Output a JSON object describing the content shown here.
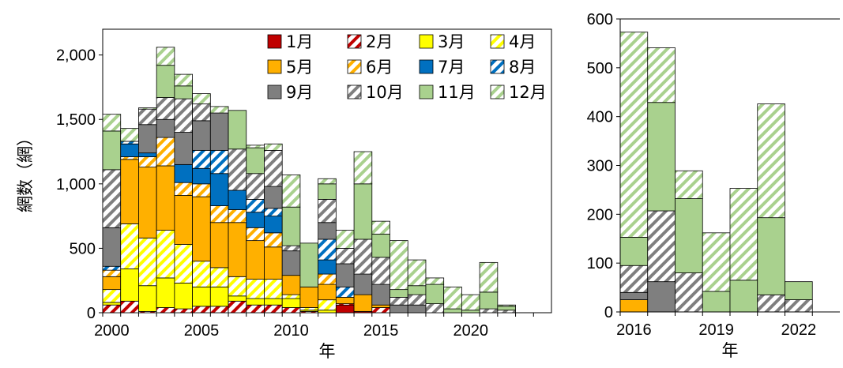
{
  "chart_data": [
    {
      "type": "bar",
      "stacked": true,
      "xlabel": "年",
      "ylabel": "網数（網）",
      "ylim": [
        0,
        2200
      ],
      "yticks": [
        0,
        500,
        1000,
        1500,
        2000
      ],
      "ytick_labels": [
        "0",
        "500",
        "1,000",
        "1,500",
        "2,000"
      ],
      "xticks": [
        2000,
        2005,
        2010,
        2015,
        2020
      ],
      "xlim": [
        1999.5,
        2024.5
      ],
      "legend_position": "top-right",
      "x": [
        2000,
        2001,
        2002,
        2003,
        2004,
        2005,
        2006,
        2007,
        2008,
        2009,
        2010,
        2011,
        2012,
        2013,
        2014,
        2015,
        2016,
        2017,
        2018,
        2019,
        2020,
        2021,
        2022
      ],
      "series": [
        {
          "name": "1月",
          "color": "#c00000",
          "pattern": "solid",
          "values": [
            0,
            0,
            0,
            0,
            0,
            0,
            0,
            0,
            0,
            0,
            0,
            0,
            0,
            60,
            10,
            0,
            0,
            0,
            0,
            0,
            0,
            0,
            0
          ]
        },
        {
          "name": "2月",
          "color": "#c00000",
          "pattern": "hatch",
          "values": [
            60,
            90,
            10,
            40,
            30,
            50,
            50,
            90,
            60,
            60,
            40,
            10,
            0,
            10,
            0,
            40,
            0,
            0,
            0,
            0,
            0,
            0,
            0
          ]
        },
        {
          "name": "3月",
          "color": "#ffff00",
          "pattern": "solid",
          "values": [
            20,
            250,
            200,
            230,
            200,
            150,
            150,
            40,
            50,
            50,
            70,
            10,
            20,
            0,
            0,
            0,
            0,
            0,
            0,
            0,
            0,
            0,
            0
          ]
        },
        {
          "name": "4月",
          "color": "#ffff00",
          "pattern": "hatch",
          "values": [
            100,
            350,
            370,
            370,
            300,
            200,
            150,
            150,
            150,
            150,
            30,
            20,
            80,
            0,
            0,
            0,
            0,
            0,
            0,
            0,
            0,
            0,
            0
          ]
        },
        {
          "name": "5月",
          "color": "#ffb000",
          "pattern": "solid",
          "values": [
            100,
            500,
            550,
            500,
            380,
            500,
            350,
            420,
            300,
            250,
            150,
            160,
            120,
            50,
            130,
            20,
            0,
            0,
            0,
            0,
            0,
            0,
            0
          ]
        },
        {
          "name": "6月",
          "color": "#ffb000",
          "pattern": "hatch",
          "values": [
            50,
            20,
            80,
            220,
            100,
            100,
            130,
            100,
            100,
            110,
            0,
            0,
            80,
            0,
            0,
            0,
            0,
            0,
            0,
            0,
            0,
            0,
            0
          ]
        },
        {
          "name": "7月",
          "color": "#0070c0",
          "pattern": "solid",
          "values": [
            0,
            100,
            30,
            0,
            140,
            120,
            250,
            150,
            120,
            130,
            0,
            0,
            110,
            0,
            0,
            0,
            0,
            0,
            0,
            0,
            0,
            0,
            0
          ]
        },
        {
          "name": "8月",
          "color": "#0070c0",
          "pattern": "hatch",
          "values": [
            30,
            20,
            0,
            0,
            0,
            140,
            180,
            0,
            100,
            60,
            0,
            0,
            160,
            80,
            0,
            0,
            0,
            0,
            0,
            0,
            0,
            0,
            0
          ]
        },
        {
          "name": "9月",
          "color": "#7f7f7f",
          "pattern": "solid",
          "values": [
            300,
            0,
            220,
            140,
            250,
            230,
            290,
            0,
            0,
            170,
            190,
            0,
            130,
            180,
            160,
            160,
            60,
            60,
            0,
            0,
            0,
            0,
            0
          ]
        },
        {
          "name": "10月",
          "color": "#7f7f7f",
          "pattern": "hatch",
          "values": [
            450,
            0,
            120,
            170,
            260,
            130,
            0,
            320,
            200,
            280,
            40,
            0,
            180,
            120,
            270,
            210,
            60,
            80,
            70,
            0,
            0,
            30,
            20
          ]
        },
        {
          "name": "11月",
          "color": "#a9d18e",
          "pattern": "solid",
          "values": [
            300,
            0,
            0,
            250,
            100,
            0,
            0,
            300,
            200,
            0,
            300,
            340,
            120,
            0,
            430,
            180,
            60,
            70,
            150,
            30,
            20,
            130,
            30
          ]
        },
        {
          "name": "12月",
          "color": "#a9d18e",
          "pattern": "hatch",
          "values": [
            130,
            100,
            10,
            140,
            90,
            80,
            50,
            0,
            20,
            50,
            250,
            0,
            40,
            140,
            250,
            100,
            380,
            200,
            50,
            170,
            120,
            230,
            10
          ]
        }
      ]
    },
    {
      "type": "bar",
      "stacked": true,
      "xlabel": "年",
      "ylabel": "",
      "ylim": [
        0,
        600
      ],
      "yticks": [
        0,
        100,
        200,
        300,
        400,
        500,
        600
      ],
      "ytick_labels": [
        "0",
        "100",
        "200",
        "300",
        "400",
        "500",
        "600"
      ],
      "xticks": [
        2016,
        2019,
        2022
      ],
      "xlim": [
        2015.5,
        2023.5
      ],
      "x": [
        2016,
        2017,
        2018,
        2019,
        2020,
        2021,
        2022
      ],
      "series": [
        {
          "name": "5月",
          "color": "#ffb000",
          "pattern": "solid",
          "values": [
            25,
            0,
            0,
            0,
            0,
            0,
            0
          ]
        },
        {
          "name": "9月",
          "color": "#7f7f7f",
          "pattern": "solid",
          "values": [
            15,
            62,
            0,
            0,
            0,
            0,
            0
          ]
        },
        {
          "name": "10月",
          "color": "#7f7f7f",
          "pattern": "hatch",
          "values": [
            55,
            145,
            80,
            0,
            0,
            35,
            25
          ]
        },
        {
          "name": "11月",
          "color": "#a9d18e",
          "pattern": "solid",
          "values": [
            58,
            222,
            152,
            42,
            65,
            158,
            37
          ]
        },
        {
          "name": "12月",
          "color": "#a9d18e",
          "pattern": "hatch",
          "values": [
            420,
            112,
            57,
            120,
            188,
            233,
            0
          ]
        }
      ]
    }
  ]
}
